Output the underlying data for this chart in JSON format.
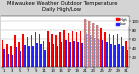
{
  "title": "Milwaukee Weather Outdoor Temperature\nDaily High/Low",
  "title_fontsize": 3.8,
  "bg_color": "#d4d4d4",
  "plot_bg": "#ffffff",
  "ylabel_fontsize": 3.2,
  "tick_fontsize": 2.8,
  "ylim": [
    0,
    110
  ],
  "yticks": [
    20,
    40,
    60,
    80,
    100
  ],
  "days": [
    1,
    2,
    3,
    4,
    5,
    6,
    7,
    8,
    9,
    10,
    11,
    12,
    13,
    14,
    15,
    16,
    17,
    18,
    19,
    20,
    21,
    22,
    23,
    24,
    25,
    26,
    27,
    28,
    29,
    30,
    31
  ],
  "highs": [
    58,
    50,
    46,
    68,
    54,
    72,
    64,
    68,
    76,
    72,
    55,
    78,
    72,
    68,
    76,
    80,
    74,
    78,
    76,
    78,
    104,
    100,
    96,
    90,
    84,
    76,
    72,
    68,
    72,
    64,
    55
  ],
  "lows": [
    38,
    28,
    26,
    42,
    34,
    48,
    46,
    46,
    52,
    50,
    36,
    54,
    50,
    46,
    54,
    58,
    54,
    56,
    54,
    52,
    72,
    68,
    62,
    60,
    58,
    54,
    50,
    48,
    50,
    44,
    36
  ],
  "high_color": "#ff0000",
  "low_color": "#2222ff",
  "dashed_indices": [
    20,
    21,
    22,
    23
  ],
  "legend_labels": [
    "High",
    "Low"
  ],
  "xtick_every": 2,
  "grid_color": "#aaaaaa"
}
